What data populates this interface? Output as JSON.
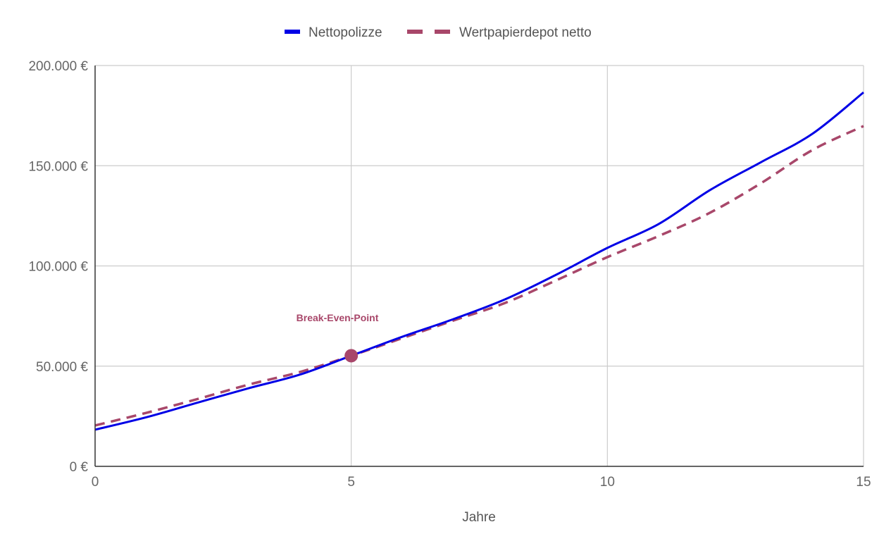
{
  "chart_data": {
    "type": "line",
    "title": "",
    "xlabel": "Jahre",
    "ylabel": "",
    "xlim": [
      0,
      15
    ],
    "ylim": [
      0,
      200000
    ],
    "x_ticks": [
      0,
      5,
      10,
      15
    ],
    "x_tick_labels": [
      "0",
      "5",
      "10",
      "15"
    ],
    "y_ticks": [
      0,
      50000,
      100000,
      150000,
      200000
    ],
    "y_tick_labels": [
      "0 €",
      "50.000 €",
      "100.000 €",
      "150.000 €",
      "200.000 €"
    ],
    "grid": true,
    "legend_position": "top",
    "x": [
      0,
      1,
      2,
      3,
      4,
      5,
      6,
      7,
      8,
      9,
      10,
      11,
      12,
      13,
      14,
      15
    ],
    "series": [
      {
        "name": "Nettopolizze",
        "color": "#0000e6",
        "style": "solid",
        "values": [
          18300,
          24500,
          31800,
          39000,
          45800,
          55200,
          64700,
          73500,
          83300,
          95600,
          109000,
          120900,
          137800,
          151800,
          165900,
          186600
        ]
      },
      {
        "name": "Wertpapierdepot netto",
        "color": "#a8476a",
        "style": "dashed",
        "values": [
          20400,
          26700,
          33600,
          40800,
          47100,
          55200,
          64000,
          72800,
          81500,
          92800,
          104400,
          114900,
          126500,
          141300,
          157800,
          169800
        ]
      }
    ],
    "annotations": [
      {
        "label": "Break-Even-Point",
        "x": 5,
        "y": 55200,
        "color": "#a8476a"
      }
    ]
  },
  "legend": {
    "items": [
      {
        "label": "Nettopolizze",
        "color": "#0000e6",
        "style": "solid"
      },
      {
        "label": "Wertpapierdepot netto",
        "color": "#a8476a",
        "style": "dashed"
      }
    ]
  },
  "axes": {
    "x_title": "Jahre"
  },
  "colors": {
    "grid": "#cccccc",
    "axis": "#333333",
    "tick_text": "#666666"
  }
}
